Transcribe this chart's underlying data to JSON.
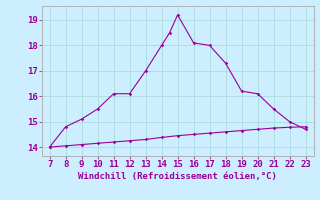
{
  "x_upper": [
    7,
    8,
    9,
    10,
    11,
    12,
    13,
    14,
    14.5,
    15,
    16,
    17,
    18,
    19,
    20,
    21,
    22,
    23
  ],
  "y_upper": [
    14.0,
    14.8,
    15.1,
    15.5,
    16.1,
    16.1,
    17.0,
    18.0,
    18.5,
    19.2,
    18.1,
    18.0,
    17.3,
    16.2,
    16.1,
    15.5,
    15.0,
    14.7
  ],
  "x_lower": [
    7,
    8,
    9,
    10,
    11,
    12,
    13,
    14,
    15,
    16,
    17,
    18,
    19,
    20,
    21,
    22,
    23
  ],
  "y_lower": [
    14.0,
    14.05,
    14.1,
    14.15,
    14.2,
    14.25,
    14.3,
    14.38,
    14.45,
    14.5,
    14.55,
    14.6,
    14.65,
    14.7,
    14.75,
    14.78,
    14.8
  ],
  "line_color": "#990099",
  "bg_color": "#cceeff",
  "grid_color": "#aadddd",
  "xlabel": "Windchill (Refroidissement éolien,°C)",
  "xlim": [
    6.5,
    23.5
  ],
  "ylim": [
    13.65,
    19.55
  ],
  "xticks": [
    7,
    8,
    9,
    10,
    11,
    12,
    13,
    14,
    15,
    16,
    17,
    18,
    19,
    20,
    21,
    22,
    23
  ],
  "yticks": [
    14,
    15,
    16,
    17,
    18,
    19
  ],
  "xlabel_color": "#990099",
  "tick_color": "#990099",
  "spine_color": "#aaaaaa"
}
